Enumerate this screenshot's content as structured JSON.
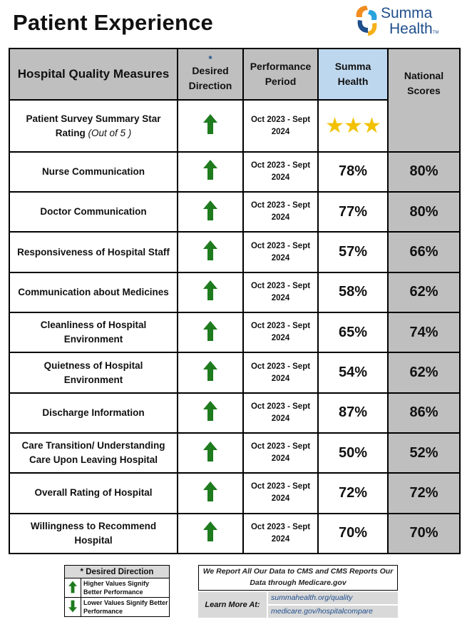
{
  "page": {
    "title": "Patient Experience",
    "logo": {
      "line1": "Summa",
      "line2": "Health",
      "tm": "TM"
    }
  },
  "table": {
    "headers": {
      "measure": "Hospital Quality Measures",
      "direction_note": "*",
      "direction": "Desired Direction",
      "period": "Performance Period",
      "summa": "Summa Health",
      "national": "National Scores"
    },
    "star_row": {
      "measure": "Patient Survey Summary Star Rating",
      "measure_note": "(Out of 5 )",
      "direction": "up",
      "period_line1": "Oct 2023 - Sept",
      "period_line2": "2024",
      "stars": 3,
      "star_glyphs": "★★★"
    },
    "rows": [
      {
        "measure": "Nurse Communication",
        "direction": "up",
        "period_line1": "Oct 2023 - Sept",
        "period_line2": "2024",
        "summa": "78%",
        "national": "80%"
      },
      {
        "measure": "Doctor Communication",
        "direction": "up",
        "period_line1": "Oct 2023 - Sept",
        "period_line2": "2024",
        "summa": "77%",
        "national": "80%"
      },
      {
        "measure": "Responsiveness of Hospital Staff",
        "direction": "up",
        "period_line1": "Oct 2023 - Sept",
        "period_line2": "2024",
        "summa": "57%",
        "national": "66%"
      },
      {
        "measure": "Communication about Medicines",
        "direction": "up",
        "period_line1": "Oct 2023 - Sept",
        "period_line2": "2024",
        "summa": "58%",
        "national": "62%"
      },
      {
        "measure": "Cleanliness of Hospital Environment",
        "direction": "up",
        "period_line1": "Oct 2023 - Sept",
        "period_line2": "2024",
        "summa": "65%",
        "national": "74%"
      },
      {
        "measure": "Quietness of Hospital Environment",
        "direction": "up",
        "period_line1": "Oct 2023 - Sept",
        "period_line2": "2024",
        "summa": "54%",
        "national": "62%"
      },
      {
        "measure": "Discharge Information",
        "direction": "up",
        "period_line1": "Oct 2023 - Sept",
        "period_line2": "2024",
        "summa": "87%",
        "national": "86%"
      },
      {
        "measure": "Care Transition/ Understanding Care Upon Leaving Hospital",
        "direction": "up",
        "period_line1": "Oct 2023 - Sept",
        "period_line2": "2024",
        "summa": "50%",
        "national": "52%"
      },
      {
        "measure": "Overall Rating of Hospital",
        "direction": "up",
        "period_line1": "Oct 2023 - Sept",
        "period_line2": "2024",
        "summa": "72%",
        "national": "72%"
      },
      {
        "measure": "Willingness to Recommend Hospital",
        "direction": "up",
        "period_line1": "Oct 2023 - Sept",
        "period_line2": "2024",
        "summa": "70%",
        "national": "70%"
      }
    ]
  },
  "legend": {
    "title": "* Desired Direction",
    "up": "Higher Values Signify Better Performance",
    "down": "Lower Values Signify Better Performance"
  },
  "report": {
    "text": "We Report All Our Data to CMS and CMS Reports Our Data through Medicare.gov",
    "learn_more": "Learn More At:",
    "link1": "summahealth.org/quality",
    "link2": "medicare.gov/hospitalcompare"
  },
  "colors": {
    "arrow_up": "#1e7b1e",
    "arrow_down": "#1e7b1e",
    "header_gray": "#bfbfbf",
    "header_blue": "#bdd7ee",
    "star": "#f2c200",
    "logo_blue": "#1f4e8c",
    "logo_orange": "#f28c1e"
  },
  "icons": {
    "direction_up": "up-arrow-icon",
    "direction_down": "down-arrow-icon"
  }
}
